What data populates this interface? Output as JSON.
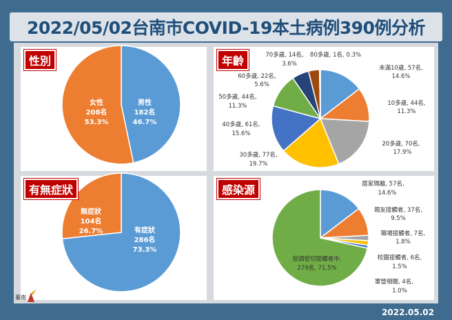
{
  "title": "2022/05/02台南市COVID-19本土病例390例分析",
  "date": "2022.05.02",
  "logo_text": "臺南",
  "colors": {
    "background": "#3e6b8e",
    "title": "#1f4e79",
    "tag": "#c00000"
  },
  "chart_data": [
    {
      "type": "pie",
      "title": "性別",
      "slices": [
        {
          "label": "男性",
          "count": "182名",
          "percent": "46.7%",
          "value": 46.7,
          "color": "#5b9bd5"
        },
        {
          "label": "女性",
          "count": "208名",
          "percent": "53.3%",
          "value": 53.3,
          "color": "#ed7d31"
        }
      ]
    },
    {
      "type": "pie",
      "title": "年齡",
      "slices": [
        {
          "label": "未滿10歲, 57名,",
          "percent": "14.6%",
          "value": 14.6,
          "color": "#5b9bd5"
        },
        {
          "label": "10多歲, 44名,",
          "percent": "11.3%",
          "value": 11.3,
          "color": "#ed7d31"
        },
        {
          "label": "20多歲, 70名,",
          "percent": "17.9%",
          "value": 17.9,
          "color": "#a5a5a5"
        },
        {
          "label": "30多歲, 77名,",
          "percent": "19.7%",
          "value": 19.7,
          "color": "#ffc000"
        },
        {
          "label": "40多歲, 61名,",
          "percent": "15.6%",
          "value": 15.6,
          "color": "#4472c4"
        },
        {
          "label": "50多歲, 44名,",
          "percent": "11.3%",
          "value": 11.3,
          "color": "#70ad47"
        },
        {
          "label": "60多歲, 22名,",
          "percent": "5.6%",
          "value": 5.6,
          "color": "#264478"
        },
        {
          "label": "70多歲, 14名,",
          "percent": "3.6%",
          "value": 3.6,
          "color": "#9e480e"
        },
        {
          "label": "80多歲, 1名, 0.3%",
          "percent": "",
          "value": 0.3,
          "color": "#636363"
        }
      ]
    },
    {
      "type": "pie",
      "title": "有無症狀",
      "slices": [
        {
          "label": "有症狀",
          "count": "286名",
          "percent": "73.3%",
          "value": 73.3,
          "color": "#5b9bd5"
        },
        {
          "label": "無症狀",
          "count": "104名",
          "percent": "26.7%",
          "value": 26.7,
          "color": "#ed7d31"
        }
      ]
    },
    {
      "type": "pie",
      "title": "感染源",
      "slices": [
        {
          "label": "居家隔離, 57名,",
          "percent": "14.6%",
          "value": 14.6,
          "color": "#5b9bd5"
        },
        {
          "label": "親友接觸者, 37名,",
          "percent": "9.5%",
          "value": 9.5,
          "color": "#ed7d31"
        },
        {
          "label": "職場接觸者, 7名,",
          "percent": "1.8%",
          "value": 1.8,
          "color": "#a5a5a5"
        },
        {
          "label": "校園接觸者, 6名,",
          "percent": "1.5%",
          "value": 1.5,
          "color": "#ffc000"
        },
        {
          "label": "軍營相關, 4名,",
          "percent": "1.0%",
          "value": 1.0,
          "color": "#4472c4"
        },
        {
          "label": "疫調密切接觸者中,",
          "percent": "279名, 71.5%",
          "value": 71.5,
          "color": "#70ad47"
        }
      ]
    }
  ]
}
